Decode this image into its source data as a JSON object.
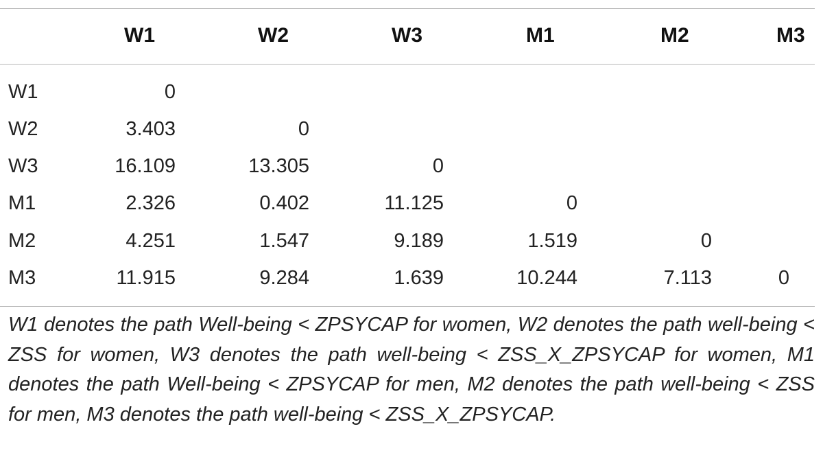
{
  "table": {
    "columns": [
      "W1",
      "W2",
      "W3",
      "M1",
      "M2",
      "M3"
    ],
    "rows": [
      {
        "label": "W1",
        "values": [
          "0"
        ]
      },
      {
        "label": "W2",
        "values": [
          "3.403",
          "0"
        ]
      },
      {
        "label": "W3",
        "values": [
          "16.109",
          "13.305",
          "0"
        ]
      },
      {
        "label": "M1",
        "values": [
          "2.326",
          "0.402",
          "11.125",
          "0"
        ]
      },
      {
        "label": "M2",
        "values": [
          "4.251",
          "1.547",
          "9.189",
          "1.519",
          "0"
        ]
      },
      {
        "label": "M3",
        "values": [
          "11.915",
          "9.284",
          "1.639",
          "10.244",
          "7.113",
          "0"
        ]
      }
    ]
  },
  "note": "W1 denotes the path Well-being < ZPSYCAP for women, W2 denotes the path well-being < ZSS for women, W3 denotes the path well-being < ZSS_X_ZPSYCAP for women, M1 denotes the path Well-being < ZPSYCAP for men, M2 denotes the path well-being < ZSS for men, M3 denotes the path well-being < ZSS_X_ZPSYCAP."
}
